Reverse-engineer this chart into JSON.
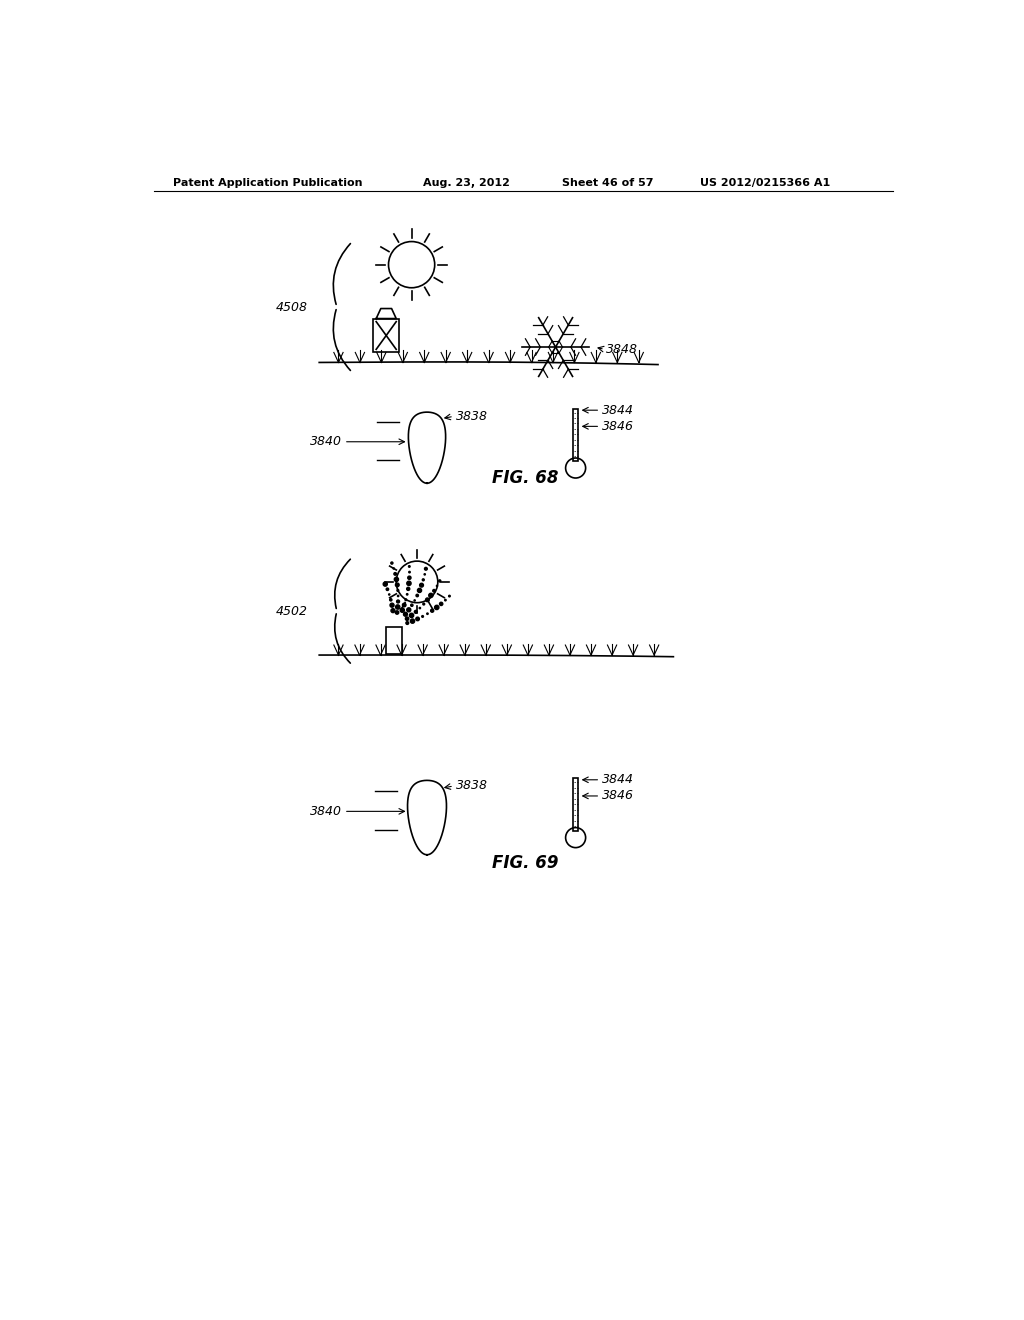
{
  "bg_color": "#ffffff",
  "header_text": "Patent Application Publication",
  "header_date": "Aug. 23, 2012",
  "header_sheet": "Sheet 46 of 57",
  "header_patent": "US 2012/0215366 A1",
  "fig68_label": "FIG. 68",
  "fig69_label": "FIG. 69",
  "label_4508": "4508",
  "label_4502": "4502",
  "label_3848": "3848",
  "label_3838": "3838",
  "label_3840": "3840",
  "label_3844_1": "3844",
  "label_3846_1": "3846",
  "label_3844_2": "3844",
  "label_3846_2": "3846",
  "label_3838_2": "3838",
  "label_3840_2": "3840"
}
